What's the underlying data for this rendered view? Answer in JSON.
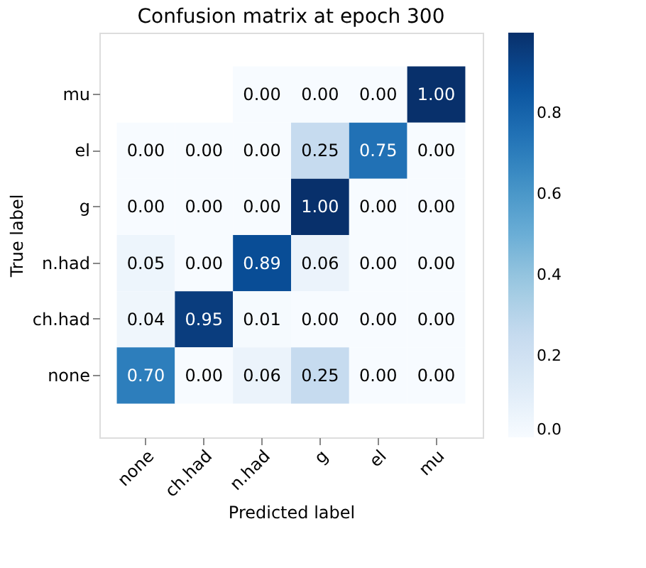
{
  "chart_data": {
    "type": "heatmap",
    "title": "Confusion matrix at epoch 300",
    "xlabel": "Predicted label",
    "ylabel": "True label",
    "categories": [
      "none",
      "ch.had",
      "n.had",
      "g",
      "el",
      "mu"
    ],
    "y_categories": [
      "mu",
      "el",
      "g",
      "n.had",
      "ch.had",
      "none"
    ],
    "cells": [
      [
        null,
        null,
        0.0,
        0.0,
        0.0,
        1.0
      ],
      [
        0.0,
        0.0,
        0.0,
        0.25,
        0.75,
        0.0
      ],
      [
        0.0,
        0.0,
        0.0,
        1.0,
        0.0,
        0.0
      ],
      [
        0.05,
        0.0,
        0.89,
        0.06,
        0.0,
        0.0
      ],
      [
        0.04,
        0.95,
        0.01,
        0.0,
        0.0,
        0.0
      ],
      [
        0.7,
        0.0,
        0.06,
        0.25,
        0.0,
        0.0
      ]
    ],
    "cell_labels": [
      [
        null,
        null,
        "0.00",
        "0.00",
        "0.00",
        "1.00"
      ],
      [
        "0.00",
        "0.00",
        "0.00",
        "0.25",
        "0.75",
        "0.00"
      ],
      [
        "0.00",
        "0.00",
        "0.00",
        "1.00",
        "0.00",
        "0.00"
      ],
      [
        "0.05",
        "0.00",
        "0.89",
        "0.06",
        "0.00",
        "0.00"
      ],
      [
        "0.04",
        "0.95",
        "0.01",
        "0.00",
        "0.00",
        "0.00"
      ],
      [
        "0.70",
        "0.00",
        "0.06",
        "0.25",
        "0.00",
        "0.00"
      ]
    ],
    "data_labels": true,
    "clim": [
      0,
      1
    ],
    "cticks": [
      {
        "value": 0,
        "label": "0.0"
      },
      {
        "value": 0.2,
        "label": "0.2"
      },
      {
        "value": 0.4,
        "label": "0.4"
      },
      {
        "value": 0.6,
        "label": "0.6"
      },
      {
        "value": 0.8,
        "label": "0.8"
      }
    ]
  }
}
